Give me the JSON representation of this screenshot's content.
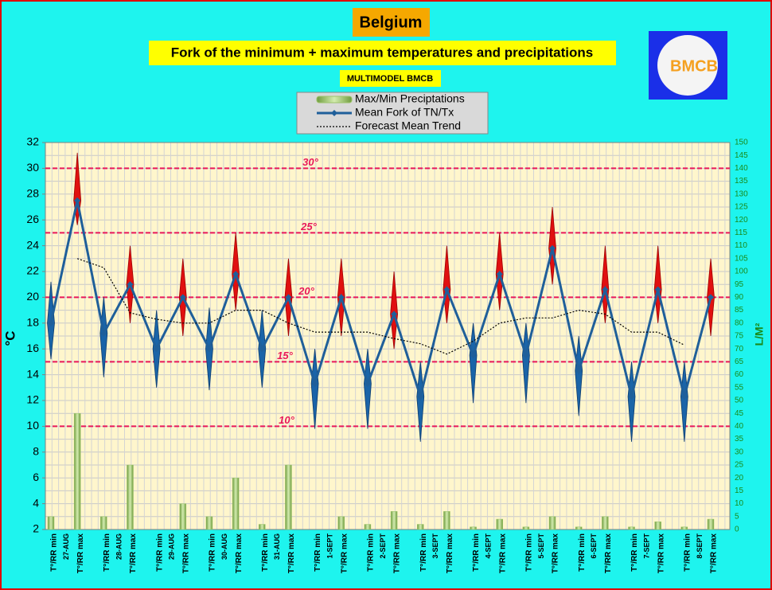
{
  "chart_data": {
    "type": "fork",
    "title": "Belgium",
    "subtitle": "Fork of the minimum + maximum temperatures and precipitations",
    "source": "MULTIMODEL BMCB",
    "logo": "BMCB",
    "ylabel": "°C",
    "y2label": "L/M²",
    "categories": [
      "T°/RR min",
      "T°/RR max",
      "T°/RR min",
      "T°/RR max",
      "T°/RR min",
      "T°/RR max",
      "T°/RR min",
      "T°/RR max",
      "T°/RR min",
      "T°/RR max",
      "T°/RR min",
      "T°/RR max",
      "T°/RR min",
      "T°/RR max",
      "T°/RR min",
      "T°/RR max",
      "T°/RR min",
      "T°/RR max",
      "T°/RR min",
      "T°/RR max",
      "T°/RR min",
      "T°/RR max",
      "T°/RR min",
      "T°/RR max",
      "T°/RR min",
      "T°/RR max"
    ],
    "dates": [
      "27-AUG",
      "28-AUG",
      "29-AUG",
      "30-AUG",
      "31-AUG",
      "1-SEPT",
      "2-SEPT",
      "3-SEPT",
      "4-SEPT",
      "5-SEPT",
      "6-SEPT",
      "7-SEPT",
      "8-SEPT"
    ],
    "ylim": [
      2,
      32
    ],
    "yticks": [
      2,
      4,
      6,
      8,
      10,
      12,
      14,
      16,
      18,
      20,
      22,
      24,
      26,
      28,
      30,
      32
    ],
    "y2lim": [
      0,
      150
    ],
    "y2ticks": [
      0,
      5,
      10,
      15,
      20,
      25,
      30,
      35,
      40,
      45,
      50,
      55,
      60,
      65,
      70,
      75,
      80,
      85,
      90,
      95,
      100,
      105,
      110,
      115,
      120,
      125,
      130,
      135,
      140,
      145,
      150
    ],
    "grid": true,
    "ref_lines": [
      {
        "value": 30,
        "label": "30°"
      },
      {
        "value": 25,
        "label": "25°"
      },
      {
        "value": 20,
        "label": "20°"
      },
      {
        "value": 15,
        "label": "15°"
      },
      {
        "value": 10,
        "label": "10°"
      }
    ],
    "series": [
      {
        "name": "Max/Min Preciptations",
        "color": "#9cc46a",
        "axis": "y2",
        "values": [
          5,
          45,
          5,
          25,
          0,
          10,
          5,
          20,
          2,
          25,
          0,
          5,
          2,
          7,
          2,
          7,
          1,
          4,
          1,
          5,
          1,
          5,
          1,
          3,
          1,
          4
        ]
      },
      {
        "name": "Mean Fork of TN/Tx",
        "color": "#1f5f9a",
        "fork_colors": [
          "#1a64a8",
          "#e01010"
        ],
        "values": [
          18,
          27.5,
          17.2,
          21,
          16,
          20,
          16,
          21.8,
          16,
          20,
          13.3,
          20,
          13.3,
          18.7,
          12.3,
          20.6,
          15.5,
          21.8,
          15.5,
          23.8,
          14.3,
          20.6,
          12.3,
          20.6,
          12.3,
          20
        ],
        "low": [
          15.2,
          25.6,
          13.8,
          18,
          13,
          17,
          12.8,
          19,
          13,
          17,
          9.8,
          17,
          9.8,
          16,
          8.8,
          18,
          11.8,
          19,
          11.8,
          21,
          10.8,
          18,
          8.8,
          18,
          8.8,
          17
        ],
        "high": [
          21.2,
          31.2,
          20,
          24,
          19,
          23,
          19.2,
          25,
          19,
          23,
          16,
          23,
          16,
          22,
          15,
          24,
          18,
          25,
          18,
          27,
          17,
          24,
          15,
          24,
          15,
          23
        ]
      },
      {
        "name": "Forecast Mean Trend",
        "color": "#000000",
        "values": [
          null,
          23,
          22.3,
          18.8,
          18.3,
          18,
          18,
          19,
          19,
          18,
          17.3,
          17.3,
          17.3,
          16.8,
          16.4,
          15.6,
          16.6,
          18,
          18.4,
          18.4,
          19,
          18.7,
          17.3,
          17.3,
          16.3,
          null
        ]
      }
    ]
  }
}
